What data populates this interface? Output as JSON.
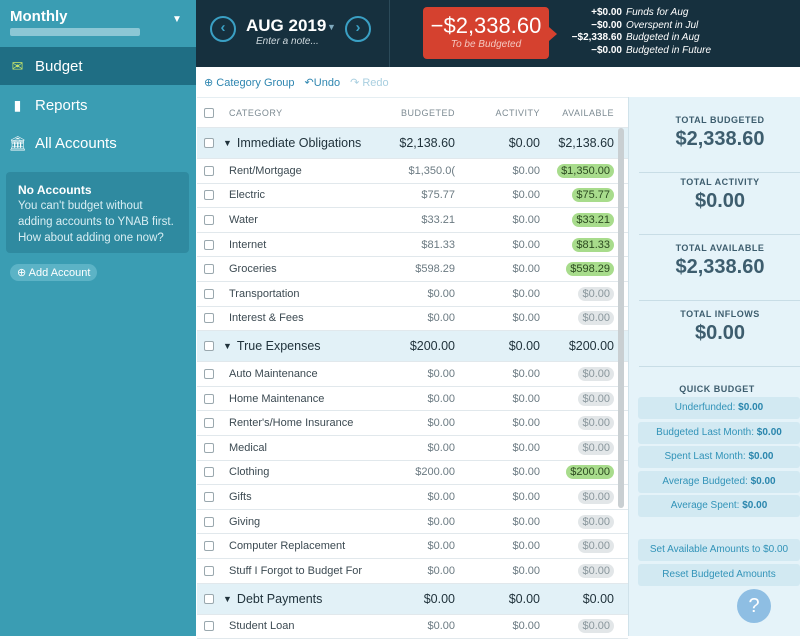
{
  "sidebar": {
    "budget_name": "Monthly",
    "nav": [
      {
        "label": "Budget",
        "icon": "envelope-icon"
      },
      {
        "label": "Reports",
        "icon": "bar-chart-icon"
      },
      {
        "label": "All Accounts",
        "icon": "bank-icon"
      }
    ],
    "no_accounts": {
      "title": "No Accounts",
      "body": "You can't budget without adding accounts to YNAB first. How about adding one now?"
    },
    "add_account": "Add Account"
  },
  "header": {
    "month": "AUG 2019",
    "note_placeholder": "Enter a note...",
    "to_be_budgeted": "−$2,338.60",
    "to_be_budgeted_label": "To be Budgeted",
    "summary": [
      {
        "value": "+$0.00",
        "label": "Funds for Aug"
      },
      {
        "value": "−$0.00",
        "label": "Overspent in Jul"
      },
      {
        "value": "−$2,338.60",
        "label": "Budgeted in Aug"
      },
      {
        "value": "−$0.00",
        "label": "Budgeted in Future"
      }
    ]
  },
  "toolbar": {
    "category_group": "Category Group",
    "undo": "Undo",
    "redo": "Redo"
  },
  "table": {
    "columns": [
      "CATEGORY",
      "BUDGETED",
      "ACTIVITY",
      "AVAILABLE"
    ],
    "rows": [
      {
        "type": "group",
        "name": "Immediate Obligations",
        "budgeted": "$2,138.60",
        "activity": "$0.00",
        "available": "$2,138.60"
      },
      {
        "type": "cat",
        "name": "Rent/Mortgage",
        "budgeted": "$1,350.0(",
        "activity": "$0.00",
        "available": "$1,350.00"
      },
      {
        "type": "cat",
        "name": "Electric",
        "budgeted": "$75.77",
        "activity": "$0.00",
        "available": "$75.77"
      },
      {
        "type": "cat",
        "name": "Water",
        "budgeted": "$33.21",
        "activity": "$0.00",
        "available": "$33.21"
      },
      {
        "type": "cat",
        "name": "Internet",
        "budgeted": "$81.33",
        "activity": "$0.00",
        "available": "$81.33"
      },
      {
        "type": "cat",
        "name": "Groceries",
        "budgeted": "$598.29",
        "activity": "$0.00",
        "available": "$598.29"
      },
      {
        "type": "cat",
        "name": "Transportation",
        "budgeted": "$0.00",
        "activity": "$0.00",
        "available": "$0.00"
      },
      {
        "type": "cat",
        "name": "Interest & Fees",
        "budgeted": "$0.00",
        "activity": "$0.00",
        "available": "$0.00"
      },
      {
        "type": "group",
        "name": "True Expenses",
        "budgeted": "$200.00",
        "activity": "$0.00",
        "available": "$200.00"
      },
      {
        "type": "cat",
        "name": "Auto Maintenance",
        "budgeted": "$0.00",
        "activity": "$0.00",
        "available": "$0.00"
      },
      {
        "type": "cat",
        "name": "Home Maintenance",
        "budgeted": "$0.00",
        "activity": "$0.00",
        "available": "$0.00"
      },
      {
        "type": "cat",
        "name": "Renter's/Home Insurance",
        "budgeted": "$0.00",
        "activity": "$0.00",
        "available": "$0.00"
      },
      {
        "type": "cat",
        "name": "Medical",
        "budgeted": "$0.00",
        "activity": "$0.00",
        "available": "$0.00"
      },
      {
        "type": "cat",
        "name": "Clothing",
        "budgeted": "$200.00",
        "activity": "$0.00",
        "available": "$200.00"
      },
      {
        "type": "cat",
        "name": "Gifts",
        "budgeted": "$0.00",
        "activity": "$0.00",
        "available": "$0.00"
      },
      {
        "type": "cat",
        "name": "Giving",
        "budgeted": "$0.00",
        "activity": "$0.00",
        "available": "$0.00"
      },
      {
        "type": "cat",
        "name": "Computer Replacement",
        "budgeted": "$0.00",
        "activity": "$0.00",
        "available": "$0.00"
      },
      {
        "type": "cat",
        "name": "Stuff I Forgot to Budget For",
        "budgeted": "$0.00",
        "activity": "$0.00",
        "available": "$0.00"
      },
      {
        "type": "group",
        "name": "Debt Payments",
        "budgeted": "$0.00",
        "activity": "$0.00",
        "available": "$0.00"
      },
      {
        "type": "cat",
        "name": "Student Loan",
        "budgeted": "$0.00",
        "activity": "$0.00",
        "available": "$0.00"
      }
    ]
  },
  "inspector": {
    "stats": [
      {
        "label": "TOTAL BUDGETED",
        "value": "$2,338.60"
      },
      {
        "label": "TOTAL ACTIVITY",
        "value": "$0.00"
      },
      {
        "label": "TOTAL AVAILABLE",
        "value": "$2,338.60"
      },
      {
        "label": "TOTAL INFLOWS",
        "value": "$0.00"
      }
    ],
    "quick_budget_title": "QUICK BUDGET",
    "quick_budget": [
      {
        "label": "Underfunded:",
        "value": "$0.00"
      },
      {
        "label": "Budgeted Last Month:",
        "value": "$0.00"
      },
      {
        "label": "Spent Last Month:",
        "value": "$0.00"
      },
      {
        "label": "Average Budgeted:",
        "value": "$0.00"
      },
      {
        "label": "Average Spent:",
        "value": "$0.00"
      }
    ],
    "actions": [
      "Set Available Amounts to $0.00",
      "Reset Budgeted Amounts"
    ],
    "help": "?"
  },
  "colors": {
    "sidebar": "#3a9db3",
    "header": "#16303e",
    "to_be_budgeted": "#d5412f",
    "positive_pill": "#a8dc8c"
  }
}
